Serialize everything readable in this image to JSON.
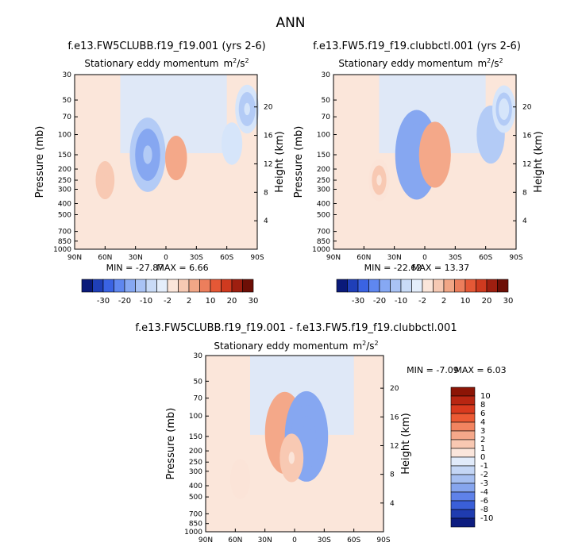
{
  "page": {
    "title": "ANN"
  },
  "chart_data": [
    {
      "type": "heatmap",
      "case_label": "f.e13.FW5CLUBB.f19_f19.001 (yrs 2-6)",
      "title": "Stationary eddy momentum",
      "units_base": "m",
      "units_sup1": "2",
      "units_mid": "/s",
      "units_sup2": "2",
      "ylabel": "Pressure (mb)",
      "y2label": "Height (km)",
      "x_ticks": [
        "90N",
        "60N",
        "30N",
        "0",
        "30S",
        "60S",
        "90S"
      ],
      "x_tick_lat": [
        90,
        60,
        30,
        0,
        -30,
        -60,
        -90
      ],
      "y_ticks": [
        "30",
        "50",
        "70",
        "100",
        "150",
        "200",
        "250",
        "300",
        "400",
        "500",
        "700",
        "850",
        "1000"
      ],
      "y_tick_p": [
        30,
        50,
        70,
        100,
        150,
        200,
        250,
        300,
        400,
        500,
        700,
        850,
        1000
      ],
      "y2_ticks": [
        "20",
        "16",
        "12",
        "8",
        "4"
      ],
      "y2_tick_km": [
        20,
        16,
        12,
        8,
        4
      ],
      "min_label": "MIN = -27.87",
      "max_label": "MAX =   6.66",
      "min": -27.87,
      "max": 6.66,
      "features": [
        {
          "lat": 18,
          "p": 150,
          "value": -20
        },
        {
          "lat": -10,
          "p": 160,
          "value": 6
        },
        {
          "lat": 60,
          "p": 250,
          "value": 3
        },
        {
          "lat": -65,
          "p": 120,
          "value": -5
        },
        {
          "lat": -80,
          "p": 60,
          "value": -8
        }
      ]
    },
    {
      "type": "heatmap",
      "case_label": "f.e13.FW5.f19_f19.clubbctl.001 (yrs 2-6)",
      "title": "Stationary eddy momentum",
      "units_base": "m",
      "units_sup1": "2",
      "units_mid": "/s",
      "units_sup2": "2",
      "ylabel": "Pressure (mb)",
      "y2label": "Height (km)",
      "x_ticks": [
        "90N",
        "60N",
        "30N",
        "0",
        "30S",
        "60S",
        "90S"
      ],
      "x_tick_lat": [
        90,
        60,
        30,
        0,
        -30,
        -60,
        -90
      ],
      "y_ticks": [
        "30",
        "50",
        "70",
        "100",
        "150",
        "200",
        "250",
        "300",
        "400",
        "500",
        "700",
        "850",
        "1000"
      ],
      "y_tick_p": [
        30,
        50,
        70,
        100,
        150,
        200,
        250,
        300,
        400,
        500,
        700,
        850,
        1000
      ],
      "y2_ticks": [
        "20",
        "16",
        "12",
        "8",
        "4"
      ],
      "y2_tick_km": [
        20,
        16,
        12,
        8,
        4
      ],
      "min_label": "MIN = -22.62",
      "max_label": "MAX =  13.37",
      "min": -22.62,
      "max": 13.37,
      "features": [
        {
          "lat": 8,
          "p": 150,
          "value": -22
        },
        {
          "lat": -10,
          "p": 150,
          "value": 13
        },
        {
          "lat": 45,
          "p": 250,
          "value": 4
        },
        {
          "lat": -65,
          "p": 100,
          "value": -10
        },
        {
          "lat": -78,
          "p": 60,
          "value": -6
        }
      ]
    },
    {
      "type": "heatmap",
      "case_label": "f.e13.FW5CLUBB.f19_f19.001 - f.e13.FW5.f19_f19.clubbctl.001",
      "title": "Stationary eddy momentum",
      "units_base": "m",
      "units_sup1": "2",
      "units_mid": "/s",
      "units_sup2": "2",
      "ylabel": "Pressure (mb)",
      "y2label": "Height (km)",
      "x_ticks": [
        "90N",
        "60N",
        "30N",
        "0",
        "30S",
        "60S",
        "90S"
      ],
      "x_tick_lat": [
        90,
        60,
        30,
        0,
        -30,
        -60,
        -90
      ],
      "y_ticks": [
        "30",
        "50",
        "70",
        "100",
        "150",
        "200",
        "250",
        "300",
        "400",
        "500",
        "700",
        "850",
        "1000"
      ],
      "y_tick_p": [
        30,
        50,
        70,
        100,
        150,
        200,
        250,
        300,
        400,
        500,
        700,
        850,
        1000
      ],
      "y2_ticks": [
        "20",
        "16",
        "12",
        "8",
        "4"
      ],
      "y2_tick_km": [
        20,
        16,
        12,
        8,
        4
      ],
      "min_label": "MIN =   -7.09",
      "max_label": "MAX =   6.03",
      "min": -7.09,
      "max": 6.03,
      "features": [
        {
          "lat": 10,
          "p": 140,
          "value": 6
        },
        {
          "lat": -12,
          "p": 150,
          "value": -7
        },
        {
          "lat": 3,
          "p": 230,
          "value": 2
        },
        {
          "lat": 55,
          "p": 350,
          "value": 1
        }
      ]
    }
  ],
  "colorbar_top": {
    "labels": [
      "-30",
      "-20",
      "-10",
      "-2",
      "2",
      "10",
      "20",
      "30"
    ],
    "colors": [
      "#0a1a7a",
      "#1f3fb8",
      "#3a63e3",
      "#5f87f0",
      "#86a8f3",
      "#a9c3f5",
      "#c9dbf7",
      "#e4eefb",
      "#fbe6da",
      "#f6c9b3",
      "#f1a686",
      "#ec7e5c",
      "#e55836",
      "#cf3a1f",
      "#9e1f10",
      "#6d0f06"
    ]
  },
  "colorbar_diff": {
    "labels": [
      "10",
      "8",
      "6",
      "4",
      "3",
      "2",
      "1",
      "0",
      "-1",
      "-2",
      "-3",
      "-4",
      "-6",
      "-8",
      "-10"
    ],
    "colors": [
      "#8c1506",
      "#b82612",
      "#d93a1e",
      "#ec5a34",
      "#f28460",
      "#f5a88a",
      "#f8c8b2",
      "#fbe6dc",
      "#e1ebfa",
      "#c4d6f5",
      "#a6bff1",
      "#86a5ee",
      "#5f82e9",
      "#3a5fd8",
      "#1f3cb0",
      "#0d1d80"
    ]
  }
}
